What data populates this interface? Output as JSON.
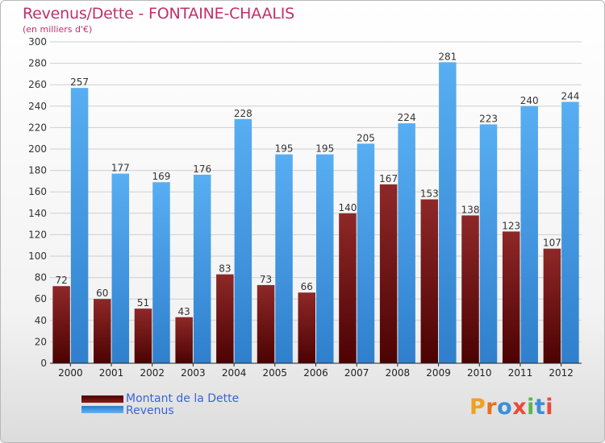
{
  "chart_data": {
    "type": "bar",
    "title": "Revenus/Dette - FONTAINE-CHAALIS",
    "subtitle": "(en milliers d'€)",
    "categories": [
      "2000",
      "2001",
      "2002",
      "2003",
      "2004",
      "2005",
      "2006",
      "2007",
      "2008",
      "2009",
      "2010",
      "2011",
      "2012"
    ],
    "series": [
      {
        "name": "Montant de la Dette",
        "values": [
          72,
          60,
          51,
          43,
          83,
          73,
          66,
          140,
          167,
          153,
          138,
          123,
          107
        ],
        "color": "#7a1818"
      },
      {
        "name": "Revenus",
        "values": [
          257,
          177,
          169,
          176,
          228,
          195,
          195,
          205,
          224,
          281,
          223,
          240,
          244
        ],
        "color": "#4a9ee8"
      }
    ],
    "ylim": [
      0,
      300
    ],
    "yticks": [
      0,
      20,
      40,
      60,
      80,
      100,
      120,
      140,
      160,
      180,
      200,
      220,
      240,
      260,
      280,
      300
    ],
    "grid": true,
    "data_labels": true,
    "legend_position": "bottom-left"
  },
  "logo_text": "Proxiti"
}
